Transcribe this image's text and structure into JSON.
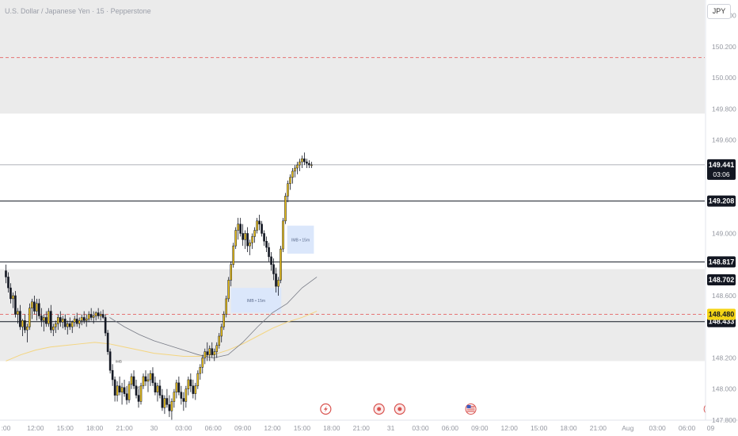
{
  "title": "U.S. Dollar / Japanese Yen · 15 · Pepperstone",
  "currency_button": "JPY",
  "colors": {
    "bull": "#f0c419",
    "bear": "#131722",
    "zone": "#ebebeb",
    "fvg": "#dbe7fb",
    "dashed": "#e57373",
    "ma_slow": "#f4d57f",
    "ma_fast": "#787b86",
    "label_dark": "#131722",
    "label_yellow": "#f5d516"
  },
  "chart_data": {
    "type": "candlestick",
    "y_min": 147.8,
    "y_max": 150.5,
    "y_ticks": [
      {
        "value": 150.4,
        "label": "150.400"
      },
      {
        "value": 150.2,
        "label": "150.200"
      },
      {
        "value": 150.0,
        "label": "150.000"
      },
      {
        "value": 149.8,
        "label": "149.800"
      },
      {
        "value": 149.6,
        "label": "149.600"
      },
      {
        "value": 149.0,
        "label": "149.000"
      },
      {
        "value": 148.6,
        "label": "148.600"
      },
      {
        "value": 148.2,
        "label": "148.200"
      },
      {
        "value": 148.0,
        "label": "148.000"
      },
      {
        "value": 147.8,
        "label": "147.800"
      }
    ],
    "x_range": [
      -0.2,
      23.6
    ],
    "x_ticks": [
      {
        "value": 0,
        "label": ":00"
      },
      {
        "value": 1,
        "label": "12:00"
      },
      {
        "value": 2,
        "label": "15:00"
      },
      {
        "value": 3,
        "label": "18:00"
      },
      {
        "value": 4,
        "label": "21:00"
      },
      {
        "value": 5,
        "label": "30"
      },
      {
        "value": 6,
        "label": "03:00"
      },
      {
        "value": 7,
        "label": "06:00"
      },
      {
        "value": 8,
        "label": "09:00"
      },
      {
        "value": 9,
        "label": "12:00"
      },
      {
        "value": 10,
        "label": "15:00"
      },
      {
        "value": 11,
        "label": "18:00"
      },
      {
        "value": 12,
        "label": "21:00"
      },
      {
        "value": 13,
        "label": "31"
      },
      {
        "value": 14,
        "label": "03:00"
      },
      {
        "value": 15,
        "label": "06:00"
      },
      {
        "value": 16,
        "label": "09:00"
      },
      {
        "value": 17,
        "label": "12:00"
      },
      {
        "value": 18,
        "label": "15:00"
      },
      {
        "value": 19,
        "label": "18:00"
      },
      {
        "value": 20,
        "label": "21:00"
      },
      {
        "value": 21,
        "label": "Aug"
      },
      {
        "value": 22,
        "label": "03:00"
      },
      {
        "value": 23,
        "label": "06:00"
      },
      {
        "value": 23.8,
        "label": "09"
      }
    ],
    "candles": [
      [
        0.0,
        148.76,
        148.8,
        148.68,
        148.72
      ],
      [
        0.08,
        148.72,
        148.75,
        148.62,
        148.65
      ],
      [
        0.16,
        148.65,
        148.68,
        148.55,
        148.58
      ],
      [
        0.24,
        148.58,
        148.62,
        148.52,
        148.6
      ],
      [
        0.32,
        148.6,
        148.63,
        148.46,
        148.48
      ],
      [
        0.4,
        148.48,
        148.52,
        148.42,
        148.5
      ],
      [
        0.48,
        148.5,
        148.54,
        148.38,
        148.4
      ],
      [
        0.56,
        148.4,
        148.45,
        148.34,
        148.44
      ],
      [
        0.64,
        148.44,
        148.48,
        148.36,
        148.38
      ],
      [
        0.72,
        148.38,
        148.42,
        148.3,
        148.4
      ],
      [
        0.8,
        148.4,
        148.55,
        148.38,
        148.52
      ],
      [
        0.88,
        148.52,
        148.58,
        148.45,
        148.56
      ],
      [
        0.96,
        148.56,
        148.6,
        148.48,
        148.5
      ],
      [
        1.04,
        148.5,
        148.58,
        148.44,
        148.55
      ],
      [
        1.12,
        148.55,
        148.58,
        148.45,
        148.47
      ],
      [
        1.2,
        148.47,
        148.52,
        148.4,
        148.44
      ],
      [
        1.28,
        148.44,
        148.48,
        148.37,
        148.46
      ],
      [
        1.36,
        148.46,
        148.5,
        148.4,
        148.42
      ],
      [
        1.44,
        148.42,
        148.52,
        148.4,
        148.5
      ],
      [
        1.52,
        148.5,
        148.54,
        148.36,
        148.38
      ],
      [
        1.6,
        148.38,
        148.42,
        148.34,
        148.4
      ],
      [
        1.68,
        148.4,
        148.44,
        148.36,
        148.42
      ],
      [
        1.76,
        148.42,
        148.48,
        148.38,
        148.46
      ],
      [
        1.84,
        148.46,
        148.5,
        148.4,
        148.43
      ],
      [
        1.92,
        148.43,
        148.47,
        148.39,
        148.45
      ],
      [
        2.0,
        148.45,
        148.48,
        148.38,
        148.4
      ],
      [
        2.08,
        148.4,
        148.44,
        148.35,
        148.42
      ],
      [
        2.16,
        148.42,
        148.46,
        148.38,
        148.4
      ],
      [
        2.24,
        148.4,
        148.44,
        148.36,
        148.43
      ],
      [
        2.32,
        148.43,
        148.47,
        148.4,
        148.45
      ],
      [
        2.4,
        148.45,
        148.49,
        148.4,
        148.42
      ],
      [
        2.48,
        148.42,
        148.46,
        148.39,
        148.44
      ],
      [
        2.56,
        148.44,
        148.48,
        148.41,
        148.46
      ],
      [
        2.64,
        148.46,
        148.5,
        148.42,
        148.44
      ],
      [
        2.72,
        148.44,
        148.48,
        148.4,
        148.45
      ],
      [
        2.8,
        148.45,
        148.5,
        148.43,
        148.48
      ],
      [
        2.88,
        148.48,
        148.52,
        148.44,
        148.46
      ],
      [
        2.96,
        148.46,
        148.5,
        148.42,
        148.47
      ],
      [
        3.04,
        148.47,
        148.5,
        148.44,
        148.49
      ],
      [
        3.12,
        148.49,
        148.52,
        148.45,
        148.47
      ],
      [
        3.2,
        148.47,
        148.5,
        148.44,
        148.48
      ],
      [
        3.28,
        148.48,
        148.51,
        148.45,
        148.46
      ],
      [
        3.36,
        148.46,
        148.48,
        148.34,
        148.36
      ],
      [
        3.44,
        148.36,
        148.38,
        148.22,
        148.24
      ],
      [
        3.52,
        148.24,
        148.26,
        148.1,
        148.12
      ],
      [
        3.6,
        148.12,
        148.16,
        148.02,
        148.06
      ],
      [
        3.68,
        148.06,
        148.08,
        147.92,
        147.96
      ],
      [
        3.76,
        147.96,
        148.05,
        147.92,
        148.02
      ],
      [
        3.84,
        148.02,
        148.08,
        147.96,
        147.98
      ],
      [
        3.92,
        147.98,
        148.04,
        147.9,
        148.01
      ],
      [
        4.0,
        148.01,
        148.06,
        147.95,
        147.97
      ],
      [
        4.08,
        147.97,
        148.02,
        147.9,
        147.93
      ],
      [
        4.16,
        147.93,
        148.05,
        147.91,
        148.03
      ],
      [
        4.24,
        148.03,
        148.1,
        148.0,
        148.08
      ],
      [
        4.32,
        148.08,
        148.12,
        148.0,
        148.02
      ],
      [
        4.4,
        148.02,
        148.06,
        147.94,
        147.96
      ],
      [
        4.48,
        147.96,
        148.0,
        147.88,
        147.92
      ],
      [
        4.56,
        147.92,
        148.04,
        147.9,
        148.02
      ],
      [
        4.64,
        148.02,
        148.1,
        148.0,
        148.08
      ],
      [
        4.72,
        148.08,
        148.12,
        148.02,
        148.05
      ],
      [
        4.8,
        148.05,
        148.1,
        147.98,
        148.06
      ],
      [
        4.88,
        148.06,
        148.12,
        148.02,
        148.1
      ],
      [
        4.96,
        148.1,
        148.14,
        148.02,
        148.04
      ],
      [
        5.04,
        148.04,
        148.08,
        147.96,
        147.98
      ],
      [
        5.12,
        147.98,
        148.04,
        147.92,
        148.02
      ],
      [
        5.2,
        148.02,
        148.06,
        147.94,
        147.96
      ],
      [
        5.28,
        147.96,
        148.0,
        147.86,
        147.88
      ],
      [
        5.36,
        147.88,
        147.96,
        147.84,
        147.94
      ],
      [
        5.44,
        147.94,
        148.0,
        147.88,
        147.9
      ],
      [
        5.52,
        147.9,
        147.96,
        147.82,
        147.86
      ],
      [
        5.6,
        147.86,
        147.94,
        147.8,
        147.92
      ],
      [
        5.68,
        147.92,
        148.0,
        147.88,
        147.98
      ],
      [
        5.76,
        147.98,
        148.06,
        147.94,
        148.04
      ],
      [
        5.84,
        148.04,
        148.08,
        147.96,
        147.98
      ],
      [
        5.92,
        147.98,
        148.02,
        147.9,
        147.94
      ],
      [
        6.0,
        147.94,
        147.98,
        147.86,
        147.92
      ],
      [
        6.08,
        147.92,
        148.02,
        147.88,
        148.0
      ],
      [
        6.16,
        148.0,
        148.08,
        147.96,
        148.06
      ],
      [
        6.24,
        148.06,
        148.1,
        147.98,
        148.02
      ],
      [
        6.32,
        148.02,
        148.06,
        147.94,
        147.97
      ],
      [
        6.4,
        147.97,
        148.04,
        147.93,
        148.02
      ],
      [
        6.48,
        148.02,
        148.12,
        148.0,
        148.1
      ],
      [
        6.56,
        148.1,
        148.16,
        148.06,
        148.14
      ],
      [
        6.64,
        148.14,
        148.22,
        148.1,
        148.2
      ],
      [
        6.72,
        148.2,
        148.26,
        148.16,
        148.24
      ],
      [
        6.8,
        148.24,
        148.3,
        148.18,
        148.22
      ],
      [
        6.88,
        148.22,
        148.28,
        148.18,
        148.26
      ],
      [
        6.96,
        148.26,
        148.3,
        148.2,
        148.22
      ],
      [
        7.04,
        148.22,
        148.26,
        148.18,
        148.24
      ],
      [
        7.12,
        148.24,
        148.3,
        148.2,
        148.28
      ],
      [
        7.2,
        148.28,
        148.36,
        148.26,
        148.34
      ],
      [
        7.28,
        148.34,
        148.42,
        148.3,
        148.4
      ],
      [
        7.36,
        148.4,
        148.5,
        148.38,
        148.48
      ],
      [
        7.44,
        148.48,
        148.6,
        148.46,
        148.58
      ],
      [
        7.52,
        148.58,
        148.72,
        148.56,
        148.7
      ],
      [
        7.6,
        148.7,
        148.82,
        148.66,
        148.8
      ],
      [
        7.68,
        148.8,
        148.94,
        148.78,
        148.92
      ],
      [
        7.76,
        148.92,
        149.04,
        148.9,
        149.02
      ],
      [
        7.84,
        149.02,
        149.1,
        148.96,
        149.06
      ],
      [
        7.92,
        149.06,
        149.1,
        148.98,
        149.0
      ],
      [
        8.0,
        149.0,
        149.06,
        148.92,
        148.96
      ],
      [
        8.08,
        148.96,
        149.02,
        148.9,
        149.0
      ],
      [
        8.16,
        149.0,
        149.04,
        148.88,
        148.92
      ],
      [
        8.24,
        148.92,
        148.96,
        148.86,
        148.94
      ],
      [
        8.32,
        148.94,
        149.0,
        148.9,
        148.98
      ],
      [
        8.4,
        148.98,
        149.04,
        148.94,
        149.02
      ],
      [
        8.48,
        149.02,
        149.1,
        149.0,
        149.08
      ],
      [
        8.56,
        149.08,
        149.12,
        149.02,
        149.06
      ],
      [
        8.64,
        149.06,
        149.08,
        148.98,
        149.0
      ],
      [
        8.72,
        149.0,
        149.02,
        148.92,
        148.95
      ],
      [
        8.8,
        148.95,
        148.98,
        148.88,
        148.91
      ],
      [
        8.88,
        148.91,
        148.94,
        148.82,
        148.85
      ],
      [
        8.96,
        148.85,
        148.88,
        148.76,
        148.8
      ],
      [
        9.04,
        148.8,
        148.84,
        148.7,
        148.74
      ],
      [
        9.12,
        148.74,
        148.78,
        148.62,
        148.66
      ],
      [
        9.2,
        148.66,
        148.72,
        148.6,
        148.7
      ],
      [
        9.28,
        148.7,
        148.92,
        148.68,
        148.9
      ],
      [
        9.36,
        148.9,
        149.1,
        148.88,
        149.08
      ],
      [
        9.44,
        149.08,
        149.26,
        149.06,
        149.24
      ],
      [
        9.52,
        149.24,
        149.34,
        149.2,
        149.32
      ],
      [
        9.6,
        149.32,
        149.38,
        149.28,
        149.36
      ],
      [
        9.68,
        149.36,
        149.42,
        149.32,
        149.4
      ],
      [
        9.76,
        149.4,
        149.44,
        149.36,
        149.42
      ],
      [
        9.84,
        149.42,
        149.46,
        149.38,
        149.44
      ],
      [
        9.92,
        149.44,
        149.48,
        149.4,
        149.46
      ],
      [
        10.0,
        149.46,
        149.5,
        149.42,
        149.48
      ],
      [
        10.08,
        149.48,
        149.52,
        149.44,
        149.46
      ],
      [
        10.16,
        149.46,
        149.48,
        149.42,
        149.45
      ],
      [
        10.24,
        149.45,
        149.47,
        149.42,
        149.44
      ],
      [
        10.32,
        149.44,
        149.46,
        149.42,
        149.441
      ]
    ],
    "levels": [
      {
        "value": 149.208,
        "label": "149.208"
      },
      {
        "value": 148.817,
        "label": "148.817"
      },
      {
        "value": 148.433,
        "label": "148.433"
      }
    ],
    "dashed_levels": [
      150.13,
      148.48
    ],
    "zones": [
      {
        "y_top": 150.5,
        "y_bottom": 149.77
      },
      {
        "y_top": 148.77,
        "y_bottom": 148.18
      }
    ],
    "price_labels": [
      {
        "value": 149.441,
        "label": "149.441",
        "sub": "03:06",
        "style": "dark"
      },
      {
        "value": 148.702,
        "label": "148.702",
        "style": "dark"
      },
      {
        "value": 148.48,
        "label": "148.480",
        "style": "yellow"
      }
    ],
    "fvg_boxes": [
      {
        "x0": 7.6,
        "x1": 9.3,
        "y_top": 148.65,
        "y_bottom": 148.49,
        "label": "IMB • 15m"
      },
      {
        "x0": 9.5,
        "x1": 10.4,
        "y_top": 149.05,
        "y_bottom": 148.87,
        "label": "IMB • 15m"
      }
    ],
    "small_labels": [
      {
        "x": 3.7,
        "y": 148.17,
        "label": "IMB"
      },
      {
        "x": 4.35,
        "y": 148.0,
        "label": "IMB"
      }
    ],
    "ma_fast": [
      [
        3.5,
        148.46
      ],
      [
        4.0,
        148.4
      ],
      [
        4.5,
        148.35
      ],
      [
        5.0,
        148.31
      ],
      [
        5.5,
        148.28
      ],
      [
        6.0,
        148.25
      ],
      [
        6.5,
        148.22
      ],
      [
        7.0,
        148.2
      ],
      [
        7.5,
        148.22
      ],
      [
        8.0,
        148.3
      ],
      [
        8.5,
        148.4
      ],
      [
        9.0,
        148.49
      ],
      [
        9.5,
        148.55
      ],
      [
        10.0,
        148.65
      ],
      [
        10.5,
        148.72
      ]
    ],
    "ma_slow": [
      [
        0.0,
        148.18
      ],
      [
        0.5,
        148.22
      ],
      [
        1.0,
        148.25
      ],
      [
        1.5,
        148.27
      ],
      [
        2.0,
        148.28
      ],
      [
        2.5,
        148.29
      ],
      [
        3.0,
        148.3
      ],
      [
        3.5,
        148.29
      ],
      [
        4.0,
        148.27
      ],
      [
        4.5,
        148.25
      ],
      [
        5.0,
        148.23
      ],
      [
        5.5,
        148.22
      ],
      [
        6.0,
        148.21
      ],
      [
        6.5,
        148.21
      ],
      [
        7.0,
        148.22
      ],
      [
        7.5,
        148.25
      ],
      [
        8.0,
        148.29
      ],
      [
        8.5,
        148.34
      ],
      [
        9.0,
        148.39
      ],
      [
        9.5,
        148.43
      ],
      [
        10.0,
        148.46
      ],
      [
        10.5,
        148.5
      ]
    ],
    "events": [
      {
        "x": 10.8,
        "type": "flash-event"
      },
      {
        "x": 12.6,
        "type": "record-event"
      },
      {
        "x": 13.3,
        "type": "record-event"
      },
      {
        "x": 15.7,
        "type": "us-flag-event"
      },
      {
        "x": 23.75,
        "type": "us-flag-event"
      }
    ]
  }
}
